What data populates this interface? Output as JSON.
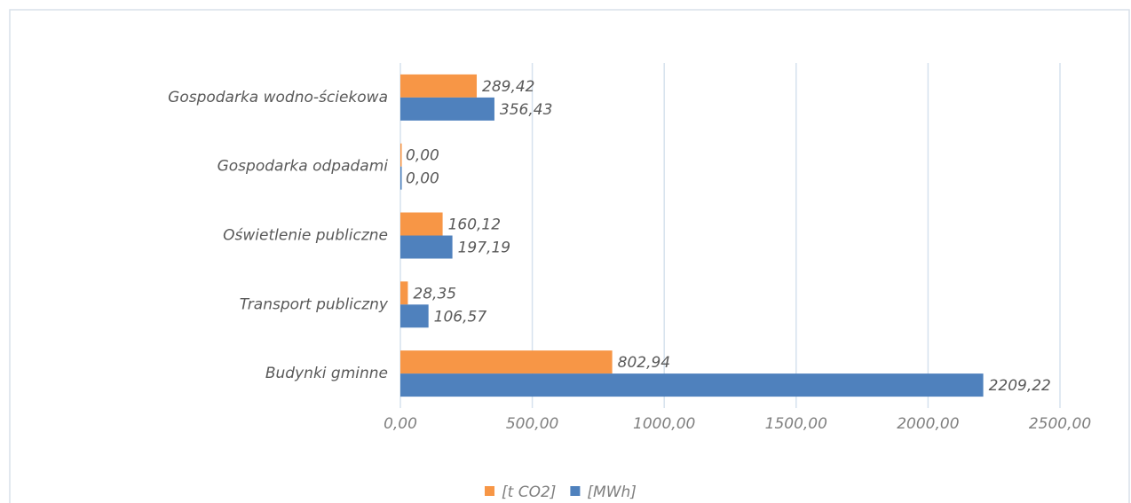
{
  "chart_data": {
    "type": "bar",
    "orientation": "horizontal",
    "categories": [
      "Gospodarka wodno-ściekowa",
      "Gospodarka odpadami",
      "Oświetlenie publiczne",
      "Transport publiczny",
      "Budynki gminne"
    ],
    "series": [
      {
        "name": "[t CO2]",
        "color": "#f79646",
        "values": [
          289.42,
          0,
          160.12,
          28.35,
          802.94
        ],
        "value_labels": [
          "289,42",
          "0,00",
          "160,12",
          "28,35",
          "802,94"
        ]
      },
      {
        "name": "[MWh]",
        "color": "#4f81bd",
        "values": [
          356.43,
          0,
          197.19,
          106.57,
          2209.22
        ],
        "value_labels": [
          "356,43",
          "0,00",
          "197,19",
          "106,57",
          "2209,22"
        ]
      }
    ],
    "xlim": [
      0,
      2500
    ],
    "xticks": [
      {
        "value": 0,
        "label": "0,00"
      },
      {
        "value": 500,
        "label": "500,00"
      },
      {
        "value": 1000,
        "label": "1000,00"
      },
      {
        "value": 1500,
        "label": "1500,00"
      },
      {
        "value": 2000,
        "label": "2000,00"
      },
      {
        "value": 2500,
        "label": "2500,00"
      }
    ],
    "grid": true,
    "legend": "bottom"
  }
}
